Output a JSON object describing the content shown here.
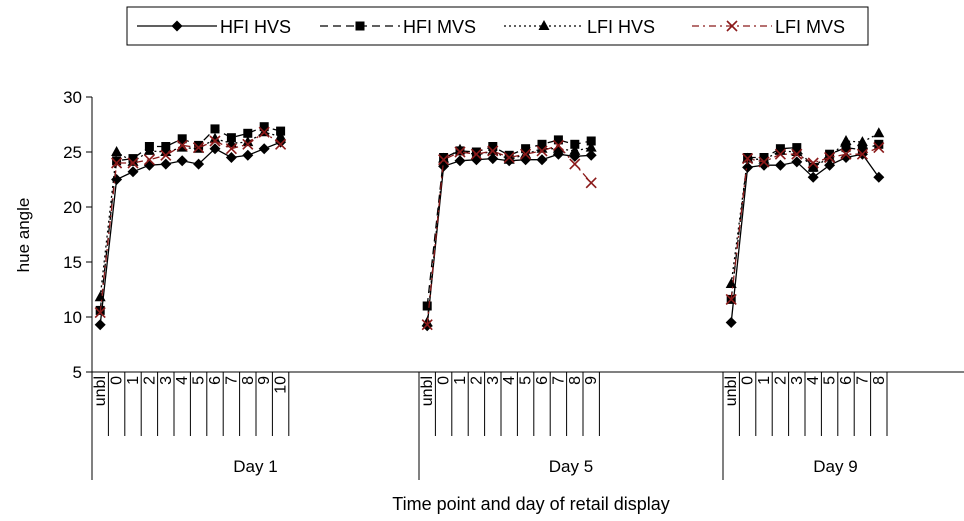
{
  "chart_data": {
    "type": "line",
    "title": "",
    "xlabel": "Time point and day of retail display",
    "ylabel": "hue angle",
    "ylim": [
      5,
      30
    ],
    "yticks": [
      5,
      10,
      15,
      20,
      25,
      30
    ],
    "grid": false,
    "legend_position": "top",
    "groups": [
      {
        "label": "Day 1",
        "categories": [
          "unbl",
          "0",
          "1",
          "2",
          "3",
          "4",
          "5",
          "6",
          "7",
          "8",
          "9",
          "10"
        ]
      },
      {
        "label": "Day 5",
        "categories": [
          "unbl",
          "0",
          "1",
          "2",
          "3",
          "4",
          "5",
          "6",
          "7",
          "8",
          "9"
        ]
      },
      {
        "label": "Day 9",
        "categories": [
          "unbl",
          "0",
          "1",
          "2",
          "3",
          "4",
          "5",
          "6",
          "7",
          "8"
        ]
      }
    ],
    "series": [
      {
        "name": "HFI HVS",
        "marker": "diamond",
        "dash": "solid",
        "color": "#000000",
        "values": [
          [
            9.3,
            22.5,
            23.2,
            23.8,
            23.9,
            24.2,
            23.9,
            25.3,
            24.5,
            24.7,
            25.3,
            25.9
          ],
          [
            9.2,
            23.7,
            24.2,
            24.3,
            24.4,
            24.2,
            24.3,
            24.3,
            24.8,
            24.6,
            24.7
          ],
          [
            9.5,
            23.6,
            23.8,
            23.8,
            24.1,
            22.7,
            23.8,
            24.5,
            24.8,
            22.7
          ]
        ]
      },
      {
        "name": "HFI MVS",
        "marker": "square",
        "dash": "dashed",
        "color": "#000000",
        "values": [
          [
            10.6,
            24.2,
            24.4,
            25.5,
            25.5,
            26.2,
            25.6,
            27.1,
            26.3,
            26.7,
            27.3,
            26.9
          ],
          [
            11.0,
            24.5,
            25.1,
            25.0,
            25.5,
            24.7,
            25.3,
            25.7,
            26.1,
            25.7,
            26.0
          ],
          [
            11.6,
            24.5,
            24.5,
            25.3,
            25.4,
            23.6,
            24.8,
            25.4,
            25.2,
            25.7
          ]
        ]
      },
      {
        "name": "LFI HVS",
        "marker": "triangle",
        "dash": "dotted",
        "color": "#000000",
        "values": [
          [
            11.8,
            25.0,
            24.1,
            25.1,
            25.0,
            25.4,
            25.3,
            26.2,
            25.8,
            25.9,
            26.8,
            26.4
          ],
          [
            9.5,
            24.4,
            25.2,
            24.7,
            25.1,
            24.3,
            24.8,
            25.3,
            25.3,
            25.1,
            25.4
          ],
          [
            13.0,
            24.4,
            24.3,
            25.1,
            25.0,
            23.6,
            24.5,
            26.0,
            25.9,
            26.7
          ]
        ]
      },
      {
        "name": "LFI MVS",
        "marker": "x",
        "dash": "dashdot",
        "color": "#8b1a1a",
        "values": [
          [
            10.4,
            24.0,
            24.0,
            24.3,
            24.7,
            25.6,
            25.4,
            26.0,
            25.3,
            25.7,
            26.8,
            25.7
          ],
          [
            9.3,
            24.3,
            25.0,
            24.8,
            25.1,
            24.5,
            24.8,
            25.1,
            25.6,
            23.9,
            22.2
          ],
          [
            11.6,
            24.4,
            24.1,
            24.8,
            24.8,
            24.0,
            24.5,
            24.8,
            24.8,
            25.4
          ]
        ]
      }
    ]
  }
}
